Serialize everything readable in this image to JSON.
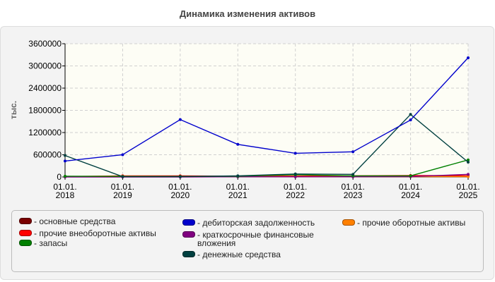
{
  "chart_data": {
    "type": "line",
    "title": "Динамика изменения активов",
    "ylabel": "тыс.",
    "xlabel": "",
    "categories": [
      "01.01.\n2018",
      "01.01.\n2019",
      "01.01.\n2020",
      "01.01.\n2021",
      "01.01.\n2022",
      "01.01.\n2023",
      "01.01.\n2024",
      "01.01.\n2025"
    ],
    "ylim": [
      0,
      3600000
    ],
    "yticks": [
      "0",
      "600000",
      "1200000",
      "1800000",
      "2400000",
      "3000000",
      "3600000"
    ],
    "yticks_values": [
      0,
      600000,
      1200000,
      1800000,
      2400000,
      3000000,
      3600000
    ],
    "grid": true,
    "legend_position": "bottom",
    "series": [
      {
        "name": "- основные средства",
        "color": "#7a0000",
        "values": [
          5000,
          8000,
          8000,
          12000,
          12000,
          15000,
          20000,
          25000
        ]
      },
      {
        "name": "- дебиторская задолженность",
        "color": "#0000cc",
        "values": [
          430000,
          600000,
          1550000,
          880000,
          640000,
          680000,
          1540000,
          3220000
        ]
      },
      {
        "name": "- прочие оборотные активы",
        "color": "#ff8000",
        "values": [
          15000,
          20000,
          15000,
          10000,
          10000,
          10000,
          10000,
          10000
        ]
      },
      {
        "name": "- прочие внеоборотные активы",
        "color": "#ff0000",
        "values": [
          10000,
          30000,
          30000,
          20000,
          25000,
          30000,
          40000,
          35000
        ]
      },
      {
        "name": "- краткосрочные финансовые вложения",
        "color": "#800080",
        "values": [
          0,
          0,
          0,
          5000,
          5000,
          5000,
          10000,
          70000
        ]
      },
      {
        "name": "- запасы",
        "color": "#008000",
        "values": [
          20000,
          15000,
          15000,
          20000,
          60000,
          30000,
          30000,
          460000
        ]
      },
      {
        "name": "- денежные средства",
        "color": "#004040",
        "values": [
          580000,
          10000,
          10000,
          30000,
          80000,
          70000,
          1690000,
          400000
        ]
      }
    ]
  }
}
